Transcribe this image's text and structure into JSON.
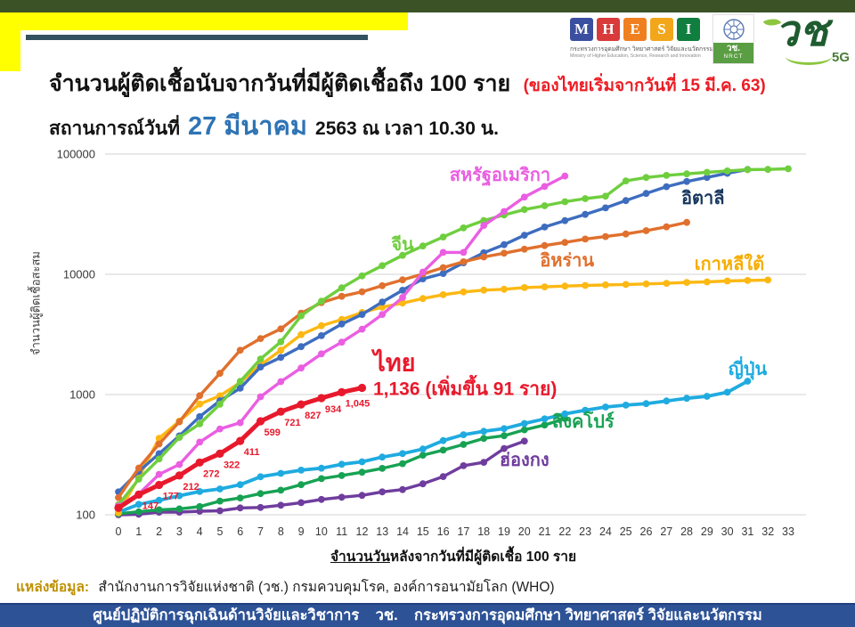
{
  "header": {
    "title": "จำนวนผู้ติดเชื้อนับจากวันที่มีผู้ติดเชื้อถึง 100 ราย",
    "title_note": "(ของไทยเริ่มจากวันที่ 15 มี.ค. 63)",
    "subtitle_prefix": "สถานการณ์วันที่",
    "subtitle_date": "27 มีนาคม",
    "subtitle_suffix": "2563 ณ เวลา 10.30 น.",
    "accent_colors": {
      "note_red": "#ed1c24",
      "date_blue": "#2e74b5",
      "top_bar_green": "#3b5226",
      "yellow": "#ffff00",
      "slate": "#33515e"
    }
  },
  "logos": {
    "mhesi": {
      "letters": [
        {
          "char": "M",
          "color": "#3b4fa0"
        },
        {
          "char": "H",
          "color": "#d93a3a"
        },
        {
          "char": "E",
          "color": "#f0801f"
        },
        {
          "char": "S",
          "color": "#f2a71b"
        },
        {
          "char": "I",
          "color": "#0f7e3e"
        }
      ],
      "line1": "กระทรวงการอุดมศึกษา วิทยาศาสตร์ วิจัยและนวัตกรรม",
      "line2": "Ministry of Higher Education, Science, Research and Innovation"
    },
    "nrct": {
      "thai": "วช.",
      "en": "NRCT"
    },
    "wch5g": {
      "text": "วช",
      "badge": "5G"
    }
  },
  "chart_data": {
    "type": "line",
    "title": "จำนวนผู้ติดเชื้อนับจากวันที่มีผู้ติดเชื้อถึง 100 ราย",
    "y_scale": "log",
    "ylabel": "จำนวนผู้ติดเชื้อสะสม",
    "xlabel": "จำนวนวันหลังจากวันที่มีผู้ติดเชื้อ 100 ราย",
    "xlabel_underlined": "จำนวนวัน",
    "xlabel_rest": "หลังจากวันที่มีผู้ติดเชื้อ 100 ราย",
    "ylim": [
      100,
      100000
    ],
    "xlim": [
      0,
      33
    ],
    "grid": true,
    "y_ticks": [
      100,
      1000,
      10000,
      100000
    ],
    "x_ticks": [
      0,
      1,
      2,
      3,
      4,
      5,
      6,
      7,
      8,
      9,
      10,
      11,
      12,
      13,
      14,
      15,
      16,
      17,
      18,
      19,
      20,
      21,
      22,
      23,
      24,
      25,
      26,
      27,
      28,
      29,
      30,
      31,
      32,
      33
    ],
    "series": [
      {
        "key": "hong_kong",
        "name": "ฮ่องกง",
        "color": "#6f3d9e",
        "line_width": 3.4,
        "label": {
          "day": 20.0,
          "value": 288
        },
        "values": [
          100,
          101,
          105,
          105,
          107,
          108,
          114,
          115,
          120,
          126,
          134,
          140,
          145,
          155,
          162,
          181,
          208,
          256,
          273,
          356,
          410
        ]
      },
      {
        "key": "singapore",
        "name": "สิงคโปร์",
        "color": "#17a253",
        "line_width": 3.4,
        "label": {
          "day": 22.9,
          "value": 600
        },
        "values": [
          102,
          106,
          110,
          112,
          117,
          130,
          138,
          150,
          160,
          178,
          200,
          212,
          226,
          243,
          266,
          313,
          345,
          385,
          432,
          455,
          509,
          558,
          631
        ]
      },
      {
        "key": "japan",
        "name": "ญี่ปุ่น",
        "color": "#1fabe0",
        "line_width": 3.8,
        "label": {
          "day": 31.0,
          "value": 1640
        },
        "values": [
          105,
          122,
          132,
          144,
          156,
          164,
          178,
          207,
          221,
          235,
          244,
          263,
          276,
          302,
          323,
          352,
          414,
          463,
          494,
          520,
          574,
          628,
          691,
          741,
          787,
          817,
          841,
          884,
          931,
          967,
          1046,
          1292
        ]
      },
      {
        "key": "south_korea",
        "name": "เกาหลีใต้",
        "color": "#fcb813",
        "line_width": 3.4,
        "label_color": "#f5ad00",
        "label": {
          "day": 30.1,
          "value": 12300
        },
        "values": [
          104,
          204,
          433,
          602,
          833,
          977,
          1261,
          1766,
          2337,
          3150,
          3736,
          4212,
          4812,
          5328,
          5766,
          6284,
          6767,
          7134,
          7382,
          7513,
          7755,
          7869,
          7979,
          8086,
          8162,
          8236,
          8320,
          8413,
          8565,
          8652,
          8799,
          8897,
          8961
        ]
      },
      {
        "key": "italy",
        "name": "อิตาลี",
        "color": "#3e6dbf",
        "line_width": 3.4,
        "label_color": "#17375e",
        "label": {
          "day": 28.8,
          "value": 43300
        },
        "values": [
          155,
          229,
          322,
          453,
          655,
          888,
          1128,
          1694,
          2036,
          2502,
          3089,
          3858,
          4636,
          5883,
          7375,
          9172,
          10149,
          12462,
          15113,
          17660,
          21157,
          24747,
          27980,
          31506,
          35713,
          41035,
          47021,
          53578,
          59138,
          63927,
          69176,
          74386
        ]
      },
      {
        "key": "iran",
        "name": "อิหร่าน",
        "color": "#e0702d",
        "line_width": 3.4,
        "label": {
          "day": 22.1,
          "value": 13100
        },
        "values": [
          139,
          245,
          388,
          593,
          978,
          1501,
          2336,
          2922,
          3513,
          4747,
          5823,
          6566,
          7161,
          8042,
          9000,
          10075,
          11364,
          12729,
          13938,
          14991,
          16169,
          17361,
          18407,
          19644,
          20610,
          21638,
          23049,
          24811,
          27017
        ]
      },
      {
        "key": "china",
        "name": "จีน",
        "color": "#6fce3e",
        "line_width": 3.4,
        "label": {
          "day": 14.0,
          "value": 17800
        },
        "values": [
          121,
          198,
          291,
          440,
          571,
          830,
          1287,
          1975,
          2744,
          4515,
          5974,
          7711,
          9692,
          11791,
          14380,
          17205,
          20438,
          24324,
          28018,
          31161,
          34546,
          37198,
          40171,
          42638,
          44653,
          59804,
          63851,
          66492,
          68500,
          70548,
          72436,
          74185,
          74576,
          75465
        ]
      },
      {
        "key": "usa",
        "name": "สหรัฐอเมริกา",
        "color": "#ea5ee2",
        "line_width": 3.4,
        "label": {
          "day": 18.8,
          "value": 67600
        },
        "values": [
          118,
          149,
          217,
          262,
          402,
          518,
          583,
          959,
          1281,
          1663,
          2179,
          2727,
          3499,
          4632,
          6421,
          10442,
          15219,
          15219,
          25489,
          33276,
          43847,
          53740,
          65778
        ]
      },
      {
        "key": "thailand",
        "name": "ไทย",
        "color": "#e8192c",
        "line_width": 5,
        "label": {
          "day": 13.6,
          "value": 1850,
          "font_size": 27
        },
        "point_labels": [
          "",
          "147",
          "177",
          "212",
          "272",
          "322",
          "411",
          "599",
          "721",
          "827",
          "934",
          "1,045",
          ""
        ],
        "annotation": {
          "text": "1,136 (เพิ่มขึ้น 91 ราย)",
          "day": 12.55,
          "value": 1105,
          "font_size": 21
        },
        "values": [
          114,
          147,
          177,
          212,
          272,
          322,
          411,
          599,
          721,
          827,
          934,
          1045,
          1136
        ]
      }
    ]
  },
  "source": {
    "label": "แหล่งข้อมูล:",
    "text": "สำนักงานการวิจัยแห่งชาติ (วช.) กรมควบคุมโรค, องค์การอนามัยโลก (WHO)"
  },
  "footer": {
    "text": "ศูนย์ปฏิบัติการฉุกเฉินด้านวิจัยและวิชาการ    วช.    กระทรวงการอุดมศึกษา วิทยาศาสตร์ วิจัยและนวัตกรรม"
  }
}
